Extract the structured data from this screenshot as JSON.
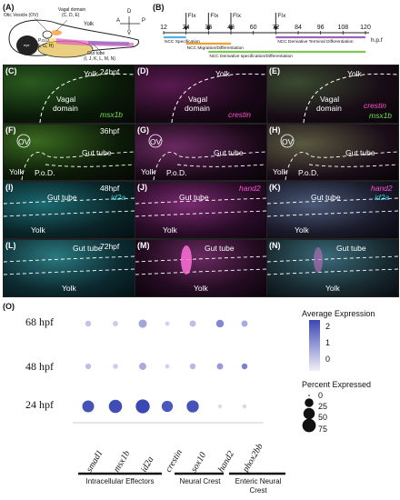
{
  "panel_labels": [
    "(A)",
    "(B)",
    "(C)",
    "(D)",
    "(E)",
    "(F)",
    "(G)",
    "(H)",
    "(I)",
    "(J)",
    "(K)",
    "(L)",
    "(M)",
    "(N)",
    "(O)"
  ],
  "schematic": {
    "ov_label": "Otic Vesicle (OV)",
    "vagal_label": "Vagal domain",
    "vagal_panels": "(C, D, E)",
    "pod_label": "P.o.D.",
    "pod_panels": "(F, G, H)",
    "yolk_label": "Yolk",
    "gut_label": "Gut tube",
    "gut_panels": "(I, J, K, L, M, N)",
    "eye_label": "eye",
    "axis_a": "A",
    "axis_p": "P",
    "axis_d": "D",
    "axis_v": "V"
  },
  "timeline": {
    "ticks": [
      "12",
      "24",
      "36",
      "48",
      "60",
      "72",
      "84",
      "96",
      "108",
      "120"
    ],
    "unit": "h.p.f",
    "fix_label": "FIx",
    "fix_at": [
      24,
      36,
      48,
      72
    ],
    "bars": [
      {
        "label": "NCC Specification",
        "start": 12,
        "end": 24,
        "color": "#4fb3e8"
      },
      {
        "label": "NCC Migration/Differentiation",
        "start": 24,
        "end": 48,
        "color": "#f0a030"
      },
      {
        "label": "NCC Derivative specification/Differentiation",
        "start": 36,
        "end": 120,
        "color": "#7ec850"
      },
      {
        "label": "NCC Derivative Terminal Differentiation",
        "start": 72,
        "end": 120,
        "color": "#a060c0"
      }
    ]
  },
  "panels": {
    "C": {
      "time": "24hpf",
      "gene": "msx1b",
      "yolk": "Yolk",
      "domain": "Vagal domain"
    },
    "D": {
      "gene": "crestin",
      "yolk": "Yolk",
      "domain": "Vagal domain"
    },
    "E": {
      "gene1": "crestin",
      "gene2": "msx1b",
      "yolk": "Yolk",
      "domain": "Vagal domain"
    },
    "F": {
      "time": "36hpf",
      "ov": "OV",
      "yolk": "Yolk",
      "pod": "P.o.D.",
      "gut": "Gut tube"
    },
    "G": {
      "ov": "OV",
      "yolk": "Yolk",
      "pod": "P.o.D.",
      "gut": "Gut tube"
    },
    "H": {
      "ov": "OV",
      "yolk": "Yolk",
      "pod": "P.o.D.",
      "gut": "Gut tube"
    },
    "I": {
      "time": "48hpf",
      "gene": "id2a",
      "gut": "Gut tube",
      "yolk": "Yolk"
    },
    "J": {
      "gene": "hand2",
      "gut": "Gut tube",
      "yolk": "Yolk"
    },
    "K": {
      "gene1": "hand2",
      "gene2": "id2a",
      "gut": "Gut tube",
      "yolk": "Yolk"
    },
    "L": {
      "time": "72hpf",
      "gut": "Gut tube",
      "yolk": "Yolk"
    },
    "M": {
      "gut": "Gut tube",
      "yolk": "Yolk"
    },
    "N": {
      "gut": "Gut tube",
      "yolk": "Yolk"
    }
  },
  "chart_data": {
    "type": "dot",
    "categories": [
      "smad1",
      "msx1b",
      "id2a",
      "crestin",
      "sox10",
      "hand2",
      "phox2bb"
    ],
    "rows": [
      "68 hpf",
      "48 hpf",
      "24 hpf"
    ],
    "avg_expression": [
      [
        -0.3,
        -0.5,
        0.3,
        -0.6,
        -0.2,
        0.9,
        0.2
      ],
      [
        -0.2,
        -0.5,
        0.2,
        -0.6,
        -0.1,
        0.5,
        1.0
      ],
      [
        2.0,
        2.1,
        2.2,
        1.9,
        2.0,
        -0.8,
        -0.7
      ]
    ],
    "pct_expressed": [
      [
        8,
        6,
        22,
        3,
        10,
        18,
        10
      ],
      [
        7,
        5,
        15,
        3,
        8,
        10,
        8
      ],
      [
        55,
        72,
        82,
        48,
        58,
        2,
        2
      ]
    ],
    "legend_avg_title": "Average Expression",
    "legend_avg_ticks": [
      "2",
      "1",
      "0"
    ],
    "legend_pct_title": "Percent Expressed",
    "legend_pct_ticks": [
      "0",
      "25",
      "50",
      "75"
    ],
    "groups": [
      {
        "label": "Intracellular Effectors"
      },
      {
        "label": "Neural Crest"
      },
      {
        "label": "Enteric Neural Crest"
      }
    ]
  }
}
